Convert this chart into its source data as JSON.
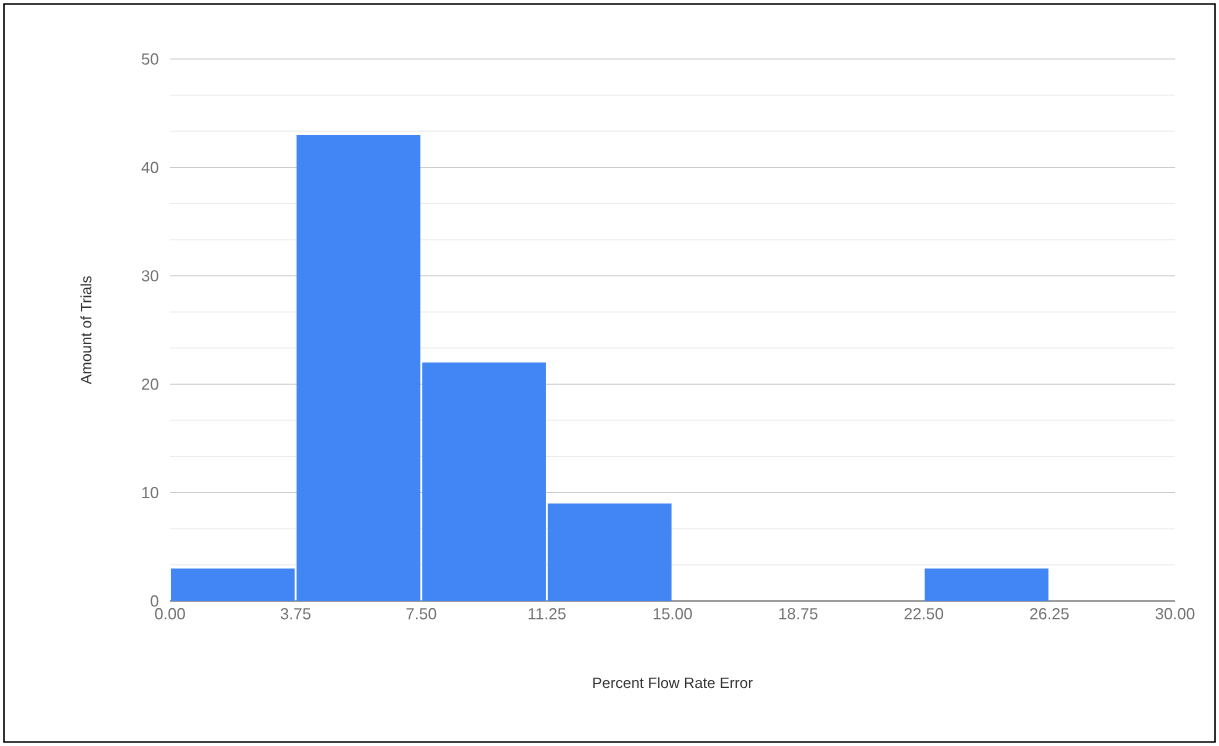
{
  "chart_data": {
    "type": "histogram",
    "xlabel": "Percent Flow Rate Error",
    "ylabel": "Amount of Trials",
    "bins": [
      0,
      3.75,
      7.5,
      11.25,
      15,
      18.75,
      22.5,
      26.25,
      30
    ],
    "values": [
      3,
      43,
      22,
      9,
      0,
      0,
      3,
      0
    ],
    "color": "#4285f4",
    "xlim": [
      0,
      30
    ],
    "ylim": [
      0,
      50
    ],
    "xticks": [
      {
        "value": 0,
        "label": "0.00"
      },
      {
        "value": 3.75,
        "label": "3.75"
      },
      {
        "value": 7.5,
        "label": "7.50"
      },
      {
        "value": 11.25,
        "label": "11.25"
      },
      {
        "value": 15,
        "label": "15.00"
      },
      {
        "value": 18.75,
        "label": "18.75"
      },
      {
        "value": 22.5,
        "label": "22.50"
      },
      {
        "value": 26.25,
        "label": "26.25"
      },
      {
        "value": 30,
        "label": "30.00"
      }
    ],
    "yticks": [
      0,
      10,
      20,
      30,
      40,
      50
    ],
    "grid": "y"
  }
}
